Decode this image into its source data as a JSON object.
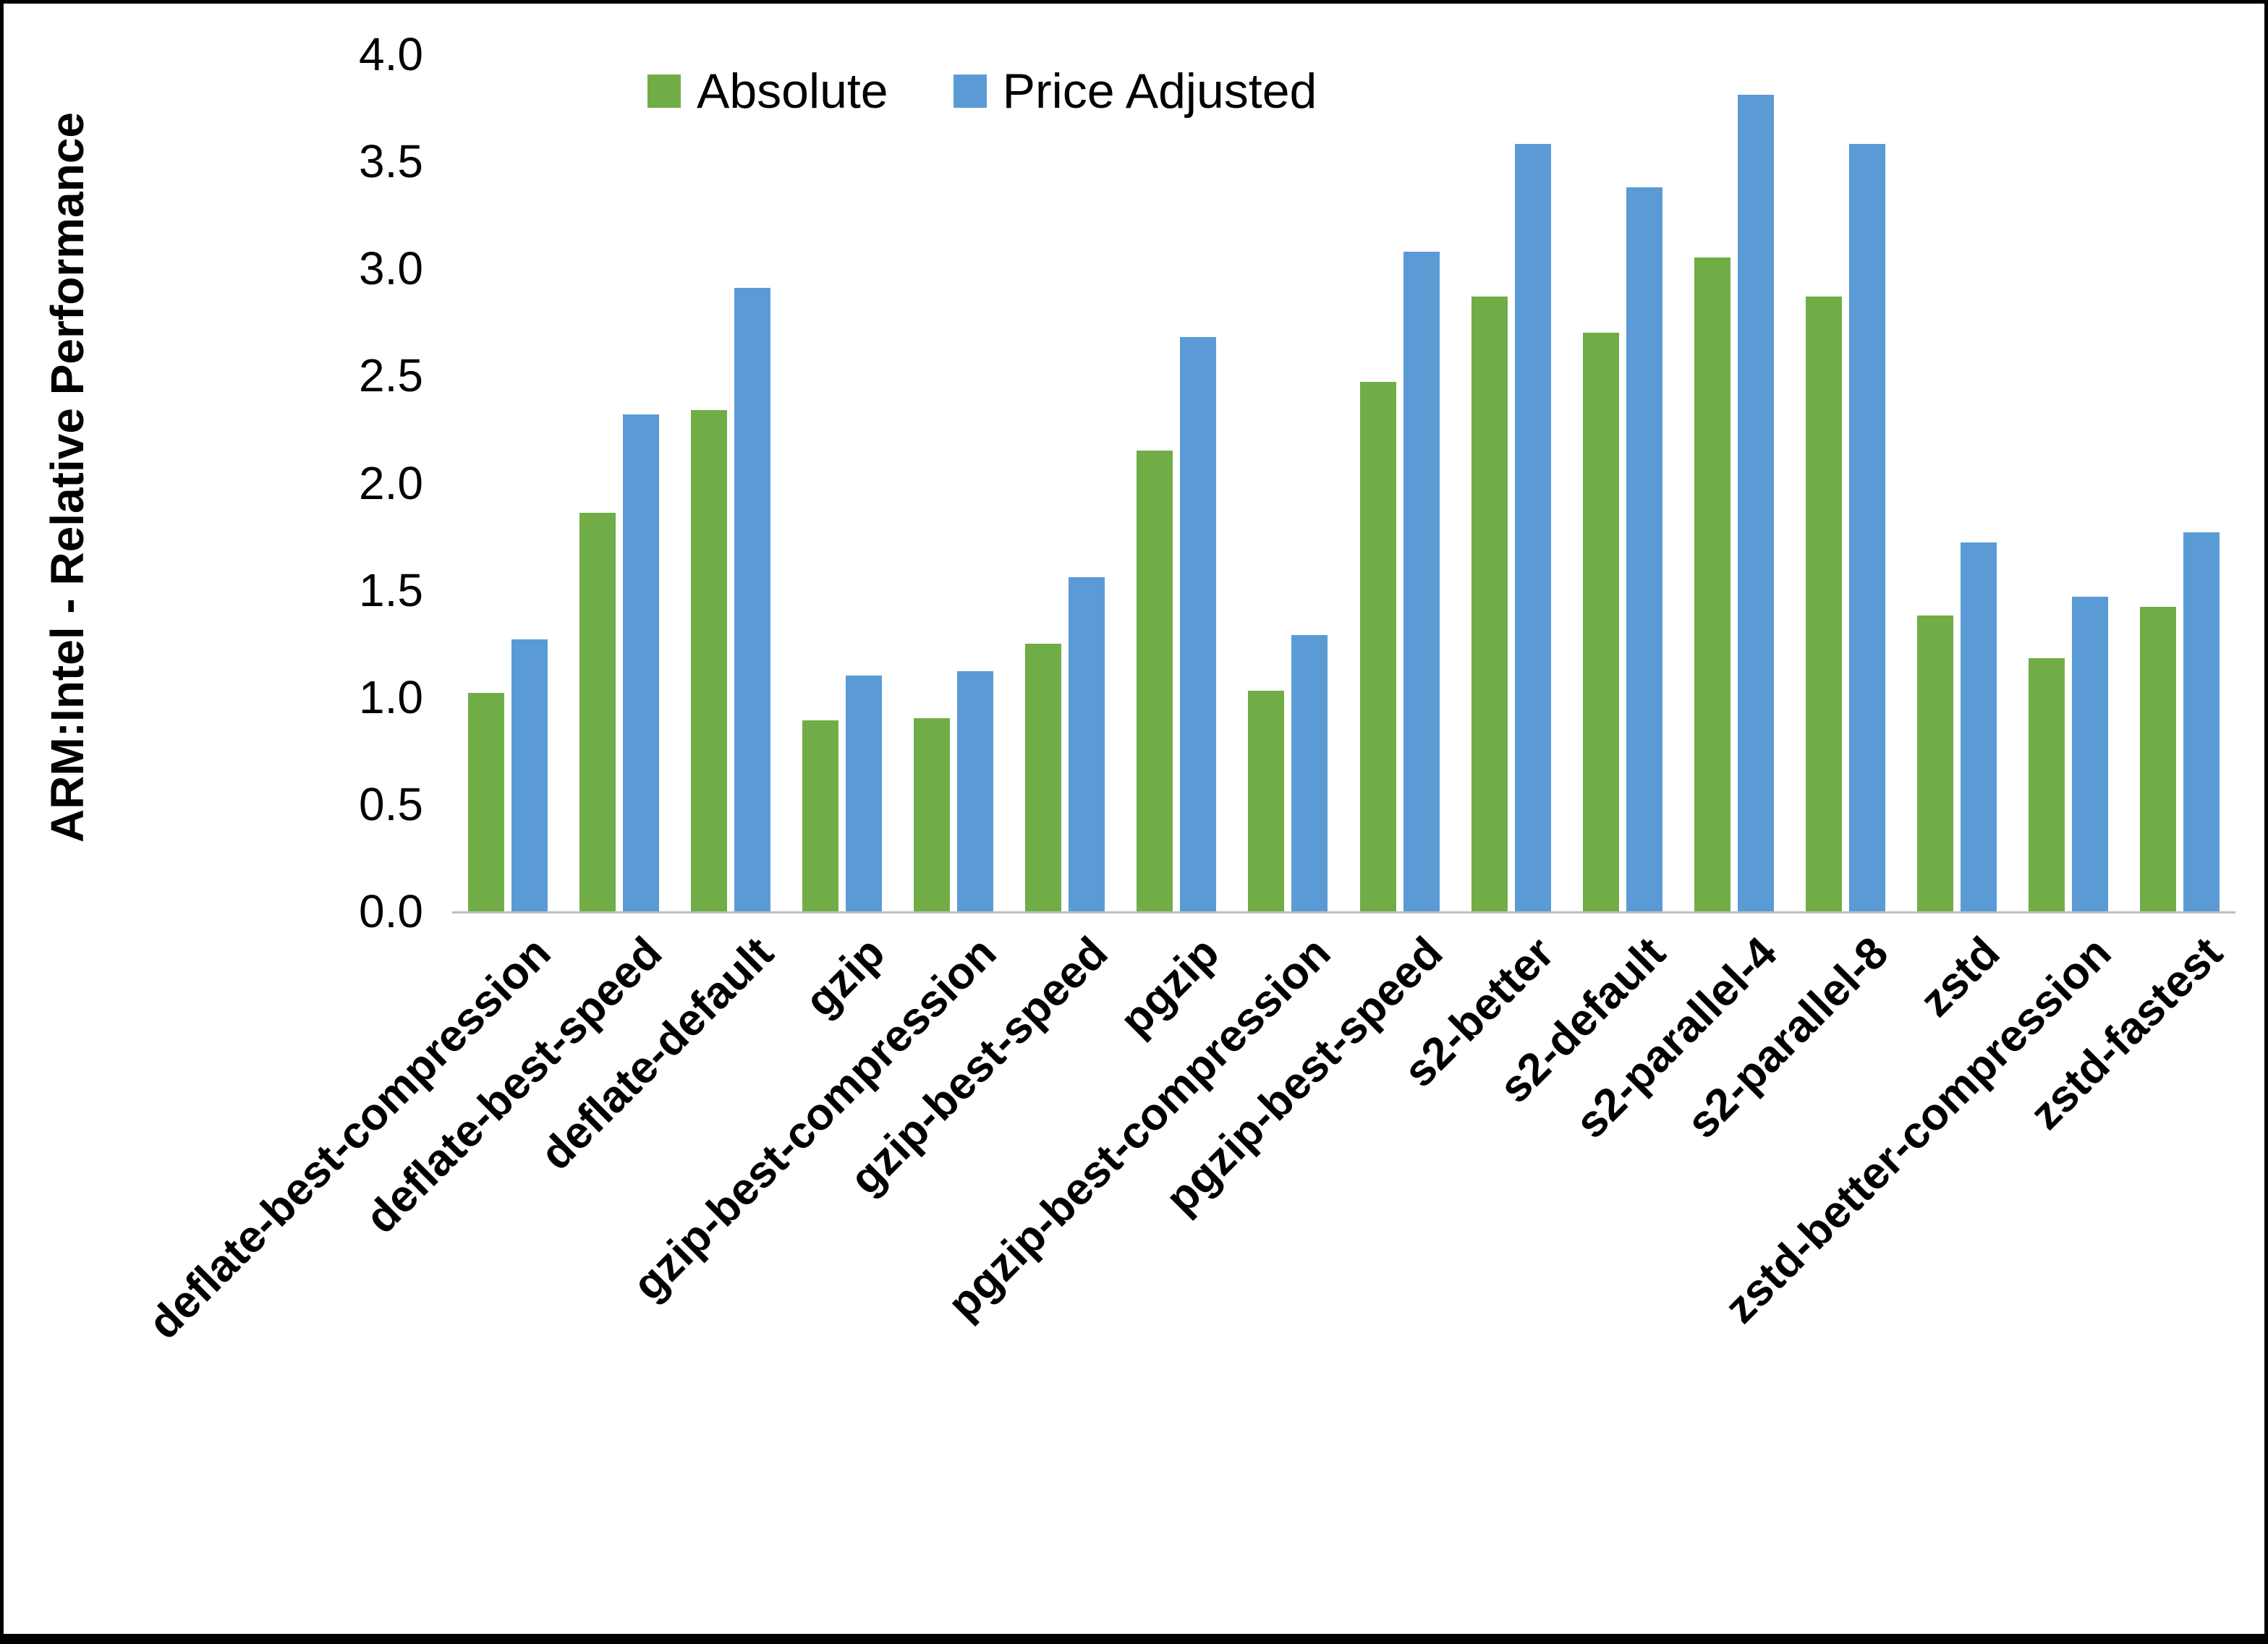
{
  "chart_data": {
    "type": "bar",
    "title": "",
    "xlabel": "",
    "ylabel": "ARM:Intel - Relative Performance",
    "ylim": [
      0,
      4
    ],
    "ytick_step": 0.5,
    "ytick_labels": [
      "0.0",
      "0.5",
      "1.0",
      "1.5",
      "2.0",
      "2.5",
      "3.0",
      "3.5",
      "4.0"
    ],
    "grid": false,
    "legend_position": "top-center-inside",
    "categories": [
      "deflate-best-compression",
      "deflate-best-speed",
      "deflate-default",
      "gzip",
      "gzip-best-compression",
      "gzip-best-speed",
      "pgzip",
      "pgzip-best-compression",
      "pgzip-best-speed",
      "s2-better",
      "s2-default",
      "s2-parallel-4",
      "s2-parallel-8",
      "zstd",
      "zstd-better-compression",
      "zstd-fastest"
    ],
    "series": [
      {
        "name": "Absolute",
        "color": "#70AD47",
        "values": [
          1.02,
          1.86,
          2.34,
          0.89,
          0.9,
          1.25,
          2.15,
          1.03,
          2.47,
          2.87,
          2.7,
          3.05,
          2.87,
          1.38,
          1.18,
          1.42
        ]
      },
      {
        "name": "Price Adjusted",
        "color": "#5B9BD5",
        "values": [
          1.27,
          2.32,
          2.91,
          1.1,
          1.12,
          1.56,
          2.68,
          1.29,
          3.08,
          3.58,
          3.38,
          3.81,
          3.58,
          1.72,
          1.47,
          1.77
        ]
      }
    ],
    "axis_line_color": "#bfbfbf",
    "text_color": "#000000"
  }
}
